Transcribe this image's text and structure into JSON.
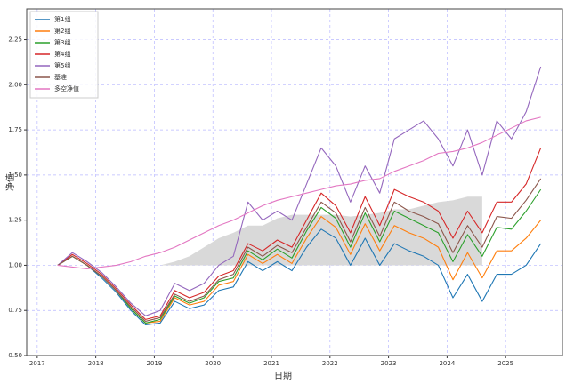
{
  "chart_data": {
    "type": "line",
    "xlabel": "日期",
    "ylabel": "净值",
    "x": [
      2017.35,
      2017.6,
      2017.85,
      2018.1,
      2018.35,
      2018.6,
      2018.85,
      2019.1,
      2019.35,
      2019.6,
      2019.85,
      2020.1,
      2020.35,
      2020.6,
      2020.85,
      2021.1,
      2021.35,
      2021.6,
      2021.85,
      2022.1,
      2022.35,
      2022.6,
      2022.85,
      2023.1,
      2023.35,
      2023.6,
      2023.85,
      2024.1,
      2024.35,
      2024.6,
      2024.85,
      2025.1,
      2025.35,
      2025.6
    ],
    "series": [
      {
        "name": "第1组",
        "color": "#1f77b4",
        "values": [
          1.0,
          1.05,
          1.0,
          0.93,
          0.85,
          0.75,
          0.67,
          0.68,
          0.8,
          0.76,
          0.78,
          0.86,
          0.88,
          1.02,
          0.97,
          1.02,
          0.97,
          1.1,
          1.2,
          1.15,
          1.0,
          1.15,
          1.0,
          1.12,
          1.08,
          1.05,
          1.0,
          0.82,
          0.95,
          0.8,
          0.95,
          0.95,
          1.0,
          1.12
        ]
      },
      {
        "name": "第2组",
        "color": "#ff7f0e",
        "values": [
          1.0,
          1.05,
          1.0,
          0.94,
          0.86,
          0.76,
          0.68,
          0.69,
          0.82,
          0.78,
          0.8,
          0.89,
          0.91,
          1.06,
          1.01,
          1.06,
          1.01,
          1.15,
          1.27,
          1.21,
          1.06,
          1.23,
          1.08,
          1.22,
          1.18,
          1.15,
          1.1,
          0.92,
          1.07,
          0.93,
          1.08,
          1.08,
          1.15,
          1.25
        ]
      },
      {
        "name": "第3组",
        "color": "#2ca02c",
        "values": [
          1.0,
          1.05,
          1.0,
          0.94,
          0.86,
          0.76,
          0.68,
          0.7,
          0.83,
          0.79,
          0.82,
          0.91,
          0.93,
          1.08,
          1.03,
          1.09,
          1.04,
          1.19,
          1.32,
          1.26,
          1.1,
          1.29,
          1.13,
          1.3,
          1.26,
          1.22,
          1.18,
          1.02,
          1.17,
          1.05,
          1.21,
          1.2,
          1.3,
          1.42
        ]
      },
      {
        "name": "第4组",
        "color": "#d62728",
        "values": [
          1.0,
          1.06,
          1.01,
          0.95,
          0.87,
          0.78,
          0.7,
          0.72,
          0.86,
          0.82,
          0.85,
          0.94,
          0.97,
          1.12,
          1.08,
          1.14,
          1.1,
          1.25,
          1.4,
          1.33,
          1.18,
          1.38,
          1.22,
          1.42,
          1.38,
          1.35,
          1.3,
          1.15,
          1.3,
          1.18,
          1.35,
          1.35,
          1.45,
          1.65
        ]
      },
      {
        "name": "第5组",
        "color": "#9467bd",
        "values": [
          1.0,
          1.07,
          1.02,
          0.96,
          0.88,
          0.79,
          0.72,
          0.75,
          0.9,
          0.86,
          0.9,
          1.0,
          1.05,
          1.35,
          1.25,
          1.3,
          1.25,
          1.45,
          1.65,
          1.55,
          1.35,
          1.55,
          1.4,
          1.7,
          1.75,
          1.8,
          1.7,
          1.55,
          1.75,
          1.5,
          1.8,
          1.7,
          1.85,
          2.1
        ]
      },
      {
        "name": "基准",
        "color": "#8c564b",
        "values": [
          1.0,
          1.05,
          1.0,
          0.94,
          0.86,
          0.77,
          0.69,
          0.71,
          0.84,
          0.8,
          0.83,
          0.92,
          0.95,
          1.1,
          1.05,
          1.11,
          1.07,
          1.21,
          1.35,
          1.29,
          1.13,
          1.32,
          1.16,
          1.35,
          1.3,
          1.27,
          1.23,
          1.07,
          1.22,
          1.1,
          1.27,
          1.26,
          1.36,
          1.48
        ]
      },
      {
        "name": "多空净值",
        "color": "#e377c2",
        "values": [
          1.0,
          0.99,
          0.98,
          0.99,
          1.0,
          1.02,
          1.05,
          1.07,
          1.1,
          1.14,
          1.18,
          1.22,
          1.25,
          1.29,
          1.33,
          1.36,
          1.38,
          1.4,
          1.42,
          1.44,
          1.45,
          1.47,
          1.48,
          1.52,
          1.55,
          1.58,
          1.62,
          1.63,
          1.65,
          1.68,
          1.72,
          1.76,
          1.8,
          1.82
        ]
      }
    ],
    "fill": {
      "color": "#d9d9d9",
      "base": 1,
      "values": [
        1.0,
        1.0,
        1.0,
        1.0,
        1.0,
        1.0,
        1.0,
        1.0,
        1.02,
        1.05,
        1.1,
        1.15,
        1.18,
        1.22,
        1.22,
        1.26,
        1.28,
        1.28,
        1.28,
        1.28,
        1.27,
        1.28,
        1.29,
        1.31,
        1.31,
        1.33,
        1.35,
        1.36,
        1.38,
        1.38,
        null,
        null,
        null,
        null
      ]
    },
    "xlim": [
      2016.82,
      2025.97
    ],
    "xticks": [
      2017,
      2018,
      2019,
      2020,
      2021,
      2022,
      2023,
      2024,
      2025
    ],
    "ylim": [
      0.5,
      2.42
    ],
    "yticks": [
      {
        "value": 0.5,
        "label": "0.50"
      },
      0.75,
      {
        "value": 1,
        "label": "1.00"
      },
      1.25,
      {
        "value": 1.5,
        "label": "1.50"
      },
      1.75,
      {
        "value": 2,
        "label": "2.00"
      },
      2.25
    ],
    "grid": true,
    "legend": "upper left"
  }
}
